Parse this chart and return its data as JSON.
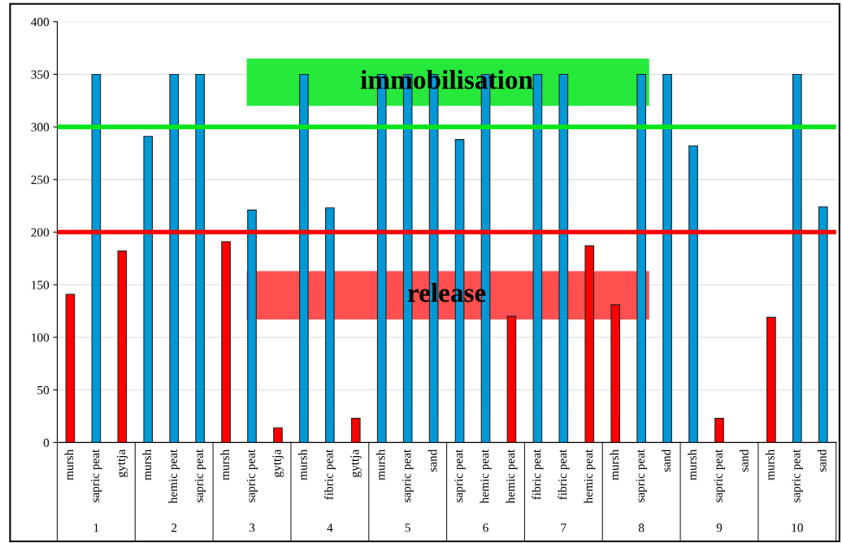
{
  "chart_data": {
    "type": "bar",
    "categories": [
      "mursh",
      "sapric peat",
      "gyttja",
      "mursh",
      "hemic peat",
      "sapric peat",
      "mursh",
      "sapric peat",
      "gyttja",
      "mursh",
      "fibric peat",
      "gyttja",
      "mursh",
      "sapric peat",
      "sand",
      "sapric peat",
      "hemic peat",
      "hemic peat",
      "fibric peat",
      "fibric peat",
      "hemic peat",
      "mursh",
      "sapric peat",
      "sand",
      "mursh",
      "sapric peat",
      "sand",
      "mursh",
      "sapric peat",
      "sand"
    ],
    "values": [
      141,
      350,
      182,
      291,
      350,
      350,
      191,
      221,
      14,
      350,
      223,
      23,
      350,
      350,
      350,
      288,
      350,
      120,
      350,
      350,
      187,
      131,
      350,
      350,
      282,
      23,
      null,
      119,
      350,
      224
    ],
    "colors": [
      "#ff0000",
      "#0099d8",
      "#ff0000",
      "#0099d8",
      "#0099d8",
      "#0099d8",
      "#ff0000",
      "#0099d8",
      "#ff0000",
      "#0099d8",
      "#0099d8",
      "#ff0000",
      "#0099d8",
      "#0099d8",
      "#0099d8",
      "#0099d8",
      "#0099d8",
      "#ff0000",
      "#0099d8",
      "#0099d8",
      "#ff0000",
      "#ff0000",
      "#0099d8",
      "#0099d8",
      "#0099d8",
      "#ff0000",
      "#0099d8",
      "#ff0000",
      "#0099d8",
      "#0099d8"
    ],
    "ylim": [
      0,
      400
    ],
    "yticks": [
      0,
      50,
      100,
      150,
      200,
      250,
      300,
      350,
      400
    ],
    "grid": "y",
    "ref_lines": [
      {
        "axis": "y",
        "value": 300,
        "color": "#00e51a"
      },
      {
        "axis": "y",
        "value": 200,
        "color": "#ff0000"
      }
    ],
    "annotations": [
      "immobilisation",
      "release",
      "1",
      "2",
      "3",
      "4",
      "5",
      "6",
      "7",
      "8",
      "9",
      "10"
    ]
  }
}
